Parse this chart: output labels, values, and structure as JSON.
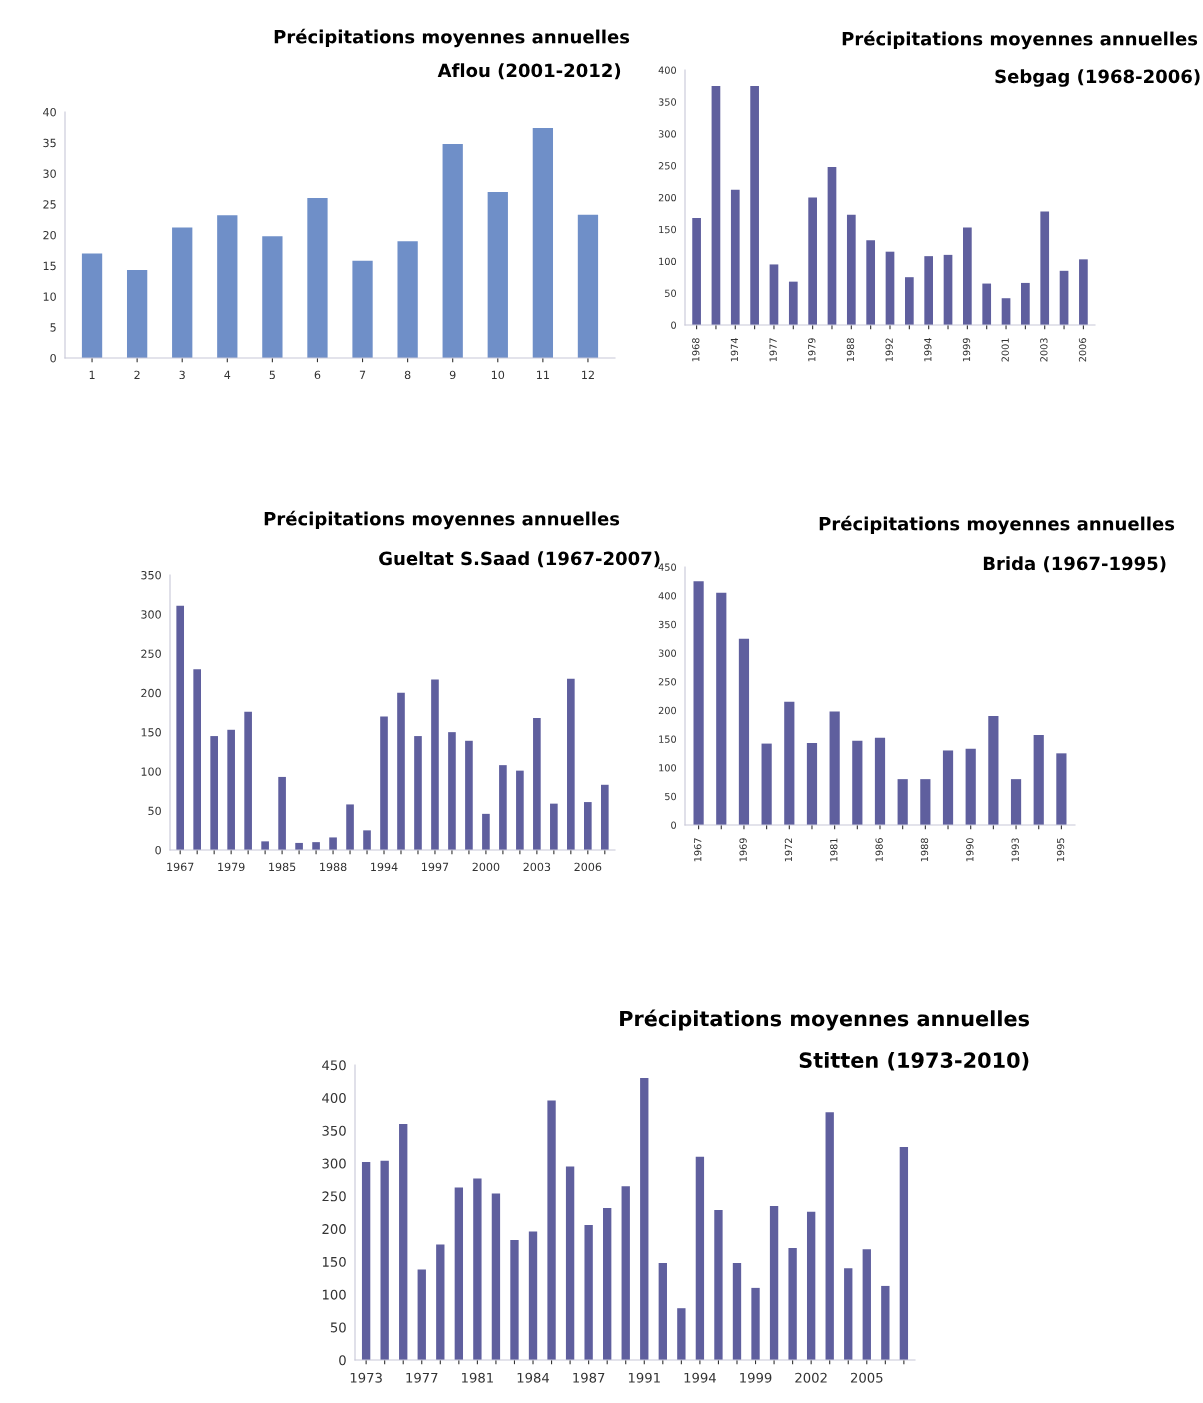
{
  "chart_data": [
    {
      "type": "bar",
      "title": "Précipitations moyennes annuelles",
      "subtitle": "Aflou (2001-2012)",
      "categories": [
        "1",
        "2",
        "3",
        "4",
        "5",
        "6",
        "7",
        "8",
        "9",
        "10",
        "11",
        "12"
      ],
      "values": [
        17,
        14.3,
        21.2,
        23.2,
        19.8,
        26,
        15.8,
        19,
        34.8,
        27,
        37.4,
        23.3
      ],
      "color": "#6f8fc8",
      "ylim": [
        0,
        40
      ],
      "yticks": [
        0,
        5,
        10,
        15,
        20,
        25,
        30,
        35,
        40
      ]
    },
    {
      "type": "bar",
      "title": "Précipitations moyennes annuelles",
      "subtitle": "Sebgag (1968-2006)",
      "categories": [
        "1968",
        null,
        "1974",
        null,
        "1977",
        null,
        "1979",
        null,
        "1988",
        null,
        "1992",
        null,
        "1994",
        null,
        "1999",
        null,
        "2001",
        null,
        "2003",
        null,
        "2006"
      ],
      "values": [
        168,
        375,
        212,
        375,
        95,
        68,
        200,
        248,
        173,
        133,
        115,
        75,
        108,
        110,
        153,
        65,
        42,
        66,
        178,
        85,
        103
      ],
      "color": "#5f5f9e",
      "ylim": [
        0,
        400
      ],
      "yticks": [
        0,
        50,
        100,
        150,
        200,
        250,
        300,
        350,
        400
      ]
    },
    {
      "type": "bar",
      "title": "Précipitations moyennes annuelles",
      "subtitle": "Gueltat S.Saad (1967-2007)",
      "categories": [
        "1967",
        null,
        null,
        "1979",
        null,
        null,
        "1985",
        null,
        null,
        "1988",
        null,
        null,
        "1994",
        null,
        null,
        "1997",
        null,
        null,
        "2000",
        null,
        null,
        "2003",
        null,
        null,
        "2006",
        null
      ],
      "values": [
        311,
        230,
        145,
        153,
        176,
        11,
        93,
        9,
        10,
        16,
        58,
        25,
        170,
        200,
        145,
        217,
        150,
        139,
        46,
        108,
        101,
        168,
        59,
        218,
        61,
        83
      ],
      "color": "#5f5f9e",
      "ylim": [
        0,
        350
      ],
      "yticks": [
        0,
        50,
        100,
        150,
        200,
        250,
        300,
        350
      ]
    },
    {
      "type": "bar",
      "title": "Précipitations moyennes annuelles",
      "subtitle": "Brida (1967-1995)",
      "categories": [
        "1967",
        null,
        "1969",
        null,
        "1972",
        null,
        "1981",
        null,
        "1986",
        null,
        "1988",
        null,
        "1990",
        null,
        "1993",
        null,
        "1995"
      ],
      "values": [
        425,
        405,
        325,
        142,
        215,
        143,
        198,
        147,
        152,
        80,
        80,
        130,
        133,
        190,
        80,
        157,
        125
      ],
      "color": "#5f5f9e",
      "ylim": [
        0,
        450
      ],
      "yticks": [
        0,
        50,
        100,
        150,
        200,
        250,
        300,
        350,
        400,
        450
      ]
    },
    {
      "type": "bar",
      "title": "Précipitations moyennes annuelles",
      "subtitle": "Stitten (1973-2010)",
      "categories": [
        "1973",
        null,
        null,
        "1977",
        null,
        null,
        "1981",
        null,
        null,
        "1984",
        null,
        null,
        "1987",
        null,
        null,
        "1991",
        null,
        null,
        "1994",
        null,
        null,
        "1999",
        null,
        null,
        "2002",
        null,
        null,
        "2005",
        null,
        null
      ],
      "values": [
        302,
        304,
        360,
        138,
        176,
        263,
        277,
        254,
        183,
        196,
        396,
        295,
        206,
        232,
        265,
        430,
        148,
        79,
        310,
        229,
        148,
        110,
        235,
        171,
        226,
        378,
        140,
        169,
        113,
        325
      ],
      "color": "#5f5f9e",
      "ylim": [
        0,
        450
      ],
      "yticks": [
        0,
        50,
        100,
        150,
        200,
        250,
        300,
        350,
        400,
        450
      ]
    }
  ]
}
